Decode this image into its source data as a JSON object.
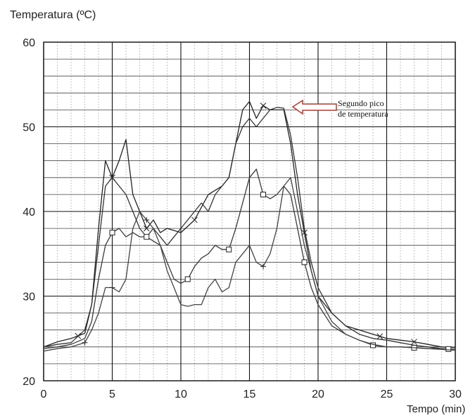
{
  "chart_data": {
    "type": "line",
    "ylabel": "Temperatura (ºC)",
    "xlabel": "Tempo (min)",
    "xlim": [
      0,
      30
    ],
    "ylim": [
      20,
      60
    ],
    "x_ticks": [
      0,
      5,
      10,
      15,
      20,
      25,
      30
    ],
    "y_ticks": [
      20,
      30,
      40,
      50,
      60
    ],
    "grid": true,
    "annotation": {
      "text_line1": "Segundo pico",
      "text_line2": "de temperatura",
      "points_to": [
        17.5,
        52
      ]
    },
    "series": [
      {
        "marker": "x",
        "color": "#222222",
        "x": [
          0,
          1,
          2,
          3,
          3.5,
          4,
          4.5,
          5,
          5.5,
          6,
          6.5,
          7,
          7.5,
          8,
          8.5,
          9,
          10,
          11,
          12,
          13,
          13.5,
          14,
          14.5,
          15,
          15.5,
          16,
          16.5,
          17,
          17.5,
          18,
          18.5,
          19,
          19.5,
          20,
          21,
          22,
          23,
          24,
          25,
          26,
          27,
          28,
          29,
          30
        ],
        "y": [
          24,
          24.6,
          25,
          25.6,
          29,
          38,
          46,
          44,
          46,
          48.5,
          42,
          40,
          38,
          39,
          37.5,
          38,
          37.5,
          39,
          42,
          43,
          44,
          48,
          52,
          53,
          51,
          52.5,
          52,
          52,
          52,
          48,
          42,
          37.5,
          33,
          30,
          28,
          26.5,
          26,
          25.5,
          25,
          24.8,
          24.6,
          24.3,
          24,
          23.9
        ],
        "markers_at": [
          2.5,
          5,
          7.5,
          11,
          16,
          19,
          24.5,
          27
        ]
      },
      {
        "marker": "plain",
        "color": "#333333",
        "x": [
          0,
          1,
          2,
          3,
          3.5,
          4,
          4.5,
          5,
          5.5,
          6,
          6.5,
          7,
          7.5,
          8,
          9,
          10,
          11,
          11.5,
          12,
          12.5,
          13,
          13.5,
          14,
          14.5,
          15,
          15.5,
          16,
          16.5,
          17,
          17.5,
          18,
          18.5,
          19,
          19.5,
          20,
          21,
          22,
          23,
          24,
          25,
          26,
          27,
          28,
          29,
          30
        ],
        "y": [
          24,
          24.3,
          24.5,
          26,
          29,
          36,
          43,
          44,
          43,
          42,
          40,
          38,
          37,
          38,
          36,
          38,
          40,
          41,
          40,
          42,
          43,
          44,
          48,
          50,
          51,
          50,
          51,
          52,
          52.3,
          52.2,
          49,
          44,
          38,
          34,
          31,
          28,
          26.5,
          25.5,
          25,
          24.8,
          24.5,
          24.2,
          24,
          23.8,
          23.6
        ]
      },
      {
        "marker": "square",
        "color": "#3a3a3a",
        "x": [
          0,
          1,
          2,
          3,
          3.5,
          4,
          4.5,
          5,
          5.5,
          6,
          6.5,
          7,
          7.5,
          8,
          8.5,
          9,
          9.5,
          10,
          10.5,
          11,
          11.5,
          12,
          12.5,
          13,
          13.5,
          14,
          14.5,
          15,
          15.5,
          16,
          16.5,
          17,
          17.5,
          18,
          18.5,
          19,
          19.5,
          20,
          21,
          22,
          23,
          24,
          25,
          26,
          27,
          28,
          29,
          30
        ],
        "y": [
          23.8,
          24,
          24.3,
          25,
          27,
          32,
          36,
          37.5,
          38,
          37,
          37.5,
          37,
          37,
          36.5,
          36,
          34,
          32,
          31.5,
          32,
          33.5,
          34.5,
          35,
          36,
          35.5,
          35.5,
          38,
          41,
          44,
          45,
          42,
          41.5,
          42,
          43,
          42,
          38,
          34,
          31,
          29,
          26.5,
          25.5,
          24.8,
          24.2,
          24,
          24,
          23.9,
          23.8,
          23.8,
          23.7
        ],
        "markers_at": [
          5,
          7.5,
          10.5,
          13.5,
          16,
          19,
          24,
          27,
          29.5
        ]
      },
      {
        "marker": "plus",
        "color": "#444444",
        "x": [
          0,
          1,
          2,
          3,
          3.5,
          4,
          4.5,
          5,
          5.5,
          6,
          6.5,
          7,
          7.5,
          8,
          8.5,
          9,
          9.5,
          10,
          10.5,
          11,
          11.5,
          12,
          12.5,
          13,
          13.5,
          14,
          14.5,
          15,
          15.5,
          16,
          16.5,
          17,
          17.5,
          18,
          18.5,
          19,
          19.5,
          20,
          21,
          22,
          23,
          24,
          25,
          26,
          27,
          28,
          29,
          30
        ],
        "y": [
          23.5,
          23.8,
          24,
          24.5,
          26,
          28,
          31,
          31,
          30.5,
          32,
          38,
          40,
          39,
          38,
          36,
          33,
          31,
          29,
          28.8,
          29,
          29,
          31,
          32,
          30.5,
          31,
          34,
          35,
          36,
          34,
          33.5,
          35,
          38,
          43,
          44,
          40,
          36,
          33,
          30,
          27,
          25.5,
          24.8,
          24.3,
          24,
          24,
          23.9,
          23.8,
          23.7,
          23.6
        ],
        "markers_at": [
          3,
          5,
          7.5,
          16
        ]
      }
    ]
  }
}
